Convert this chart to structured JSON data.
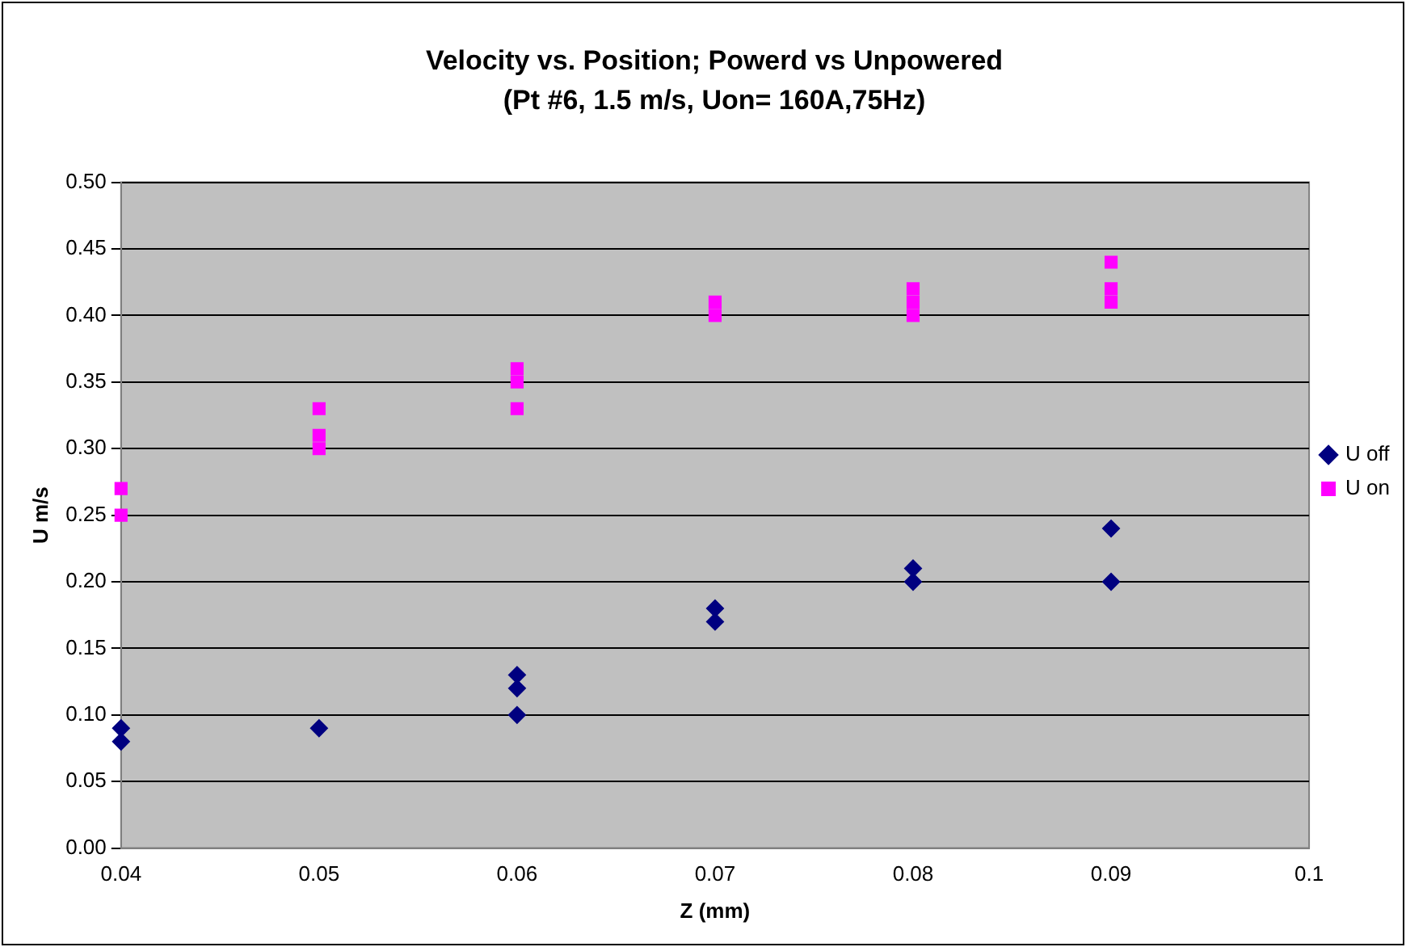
{
  "chart_data": {
    "type": "scatter",
    "title": "Velocity vs. Position; Powerd vs Unpowered",
    "subtitle": "(Pt #6, 1.5 m/s, Uon= 160A,75Hz)",
    "xlabel": "Z (mm)",
    "ylabel": "U m/s",
    "xlim": [
      0.04,
      0.1
    ],
    "xticks": [
      0.04,
      0.05,
      0.06,
      0.07,
      0.08,
      0.09,
      0.1
    ],
    "ylim": [
      0,
      0.5
    ],
    "yticks": [
      {
        "value": 0,
        "label": "0.00"
      },
      0.05,
      {
        "value": 0.1,
        "label": "0.10"
      },
      0.15,
      {
        "value": 0.2,
        "label": "0.20"
      },
      0.25,
      {
        "value": 0.3,
        "label": "0.30"
      },
      0.35,
      {
        "value": 0.4,
        "label": "0.40"
      },
      0.45,
      {
        "value": 0.5,
        "label": "0.50"
      }
    ],
    "grid": "y",
    "legend": "right",
    "series": [
      {
        "name": "U off",
        "color": "#000080",
        "marker": "diamond",
        "x": [
          0.04,
          0.04,
          0.05,
          0.06,
          0.06,
          0.06,
          0.07,
          0.07,
          0.08,
          0.08,
          0.09,
          0.09
        ],
        "values": [
          0.09,
          0.08,
          0.09,
          0.13,
          0.12,
          0.1,
          0.18,
          0.17,
          0.21,
          0.2,
          0.24,
          0.2
        ]
      },
      {
        "name": "U on",
        "color": "#ff00ff",
        "marker": "square",
        "x": [
          0.04,
          0.04,
          0.05,
          0.05,
          0.05,
          0.06,
          0.06,
          0.06,
          0.07,
          0.07,
          0.08,
          0.08,
          0.08,
          0.09,
          0.09,
          0.09
        ],
        "values": [
          0.27,
          0.25,
          0.33,
          0.31,
          0.3,
          0.36,
          0.35,
          0.33,
          0.41,
          0.4,
          0.42,
          0.41,
          0.4,
          0.44,
          0.42,
          0.41
        ]
      }
    ]
  }
}
